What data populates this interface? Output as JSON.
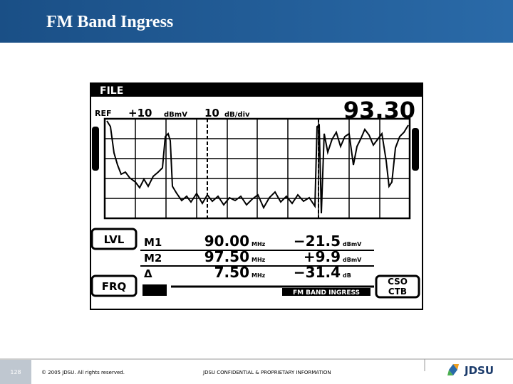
{
  "header": {
    "title": "FM Band Ingress"
  },
  "screen": {
    "mode": "FILE",
    "ref_label": "REF",
    "ref_value": "+10",
    "ref_unit": "dBmV",
    "scale_value": "10",
    "scale_unit": "dB/div",
    "frequency": "93.30",
    "level_button": "LVL",
    "frequency_button": "FRQ",
    "cso": "CSO",
    "ctb": "CTB",
    "file_name": "FM BAND INGRESS",
    "markers": [
      {
        "label": "M1",
        "frequency": "90.00",
        "frequency_unit": "MHz",
        "level": "−21.5",
        "level_unit": "dBmV"
      },
      {
        "label": "M2",
        "frequency": "97.50",
        "frequency_unit": "MHz",
        "level": "+9.9",
        "level_unit": "dBmV"
      },
      {
        "label": "Δ",
        "frequency": "7.50",
        "frequency_unit": "MHz",
        "level": "−31.4",
        "level_unit": "dB"
      }
    ]
  },
  "footer": {
    "page": "128",
    "copyright": "© 2005 JDSU. All rights reserved.",
    "confidential": "JDSU CONFIDENTIAL & PROPRIETARY INFORMATION",
    "logo": "JDSU"
  }
}
